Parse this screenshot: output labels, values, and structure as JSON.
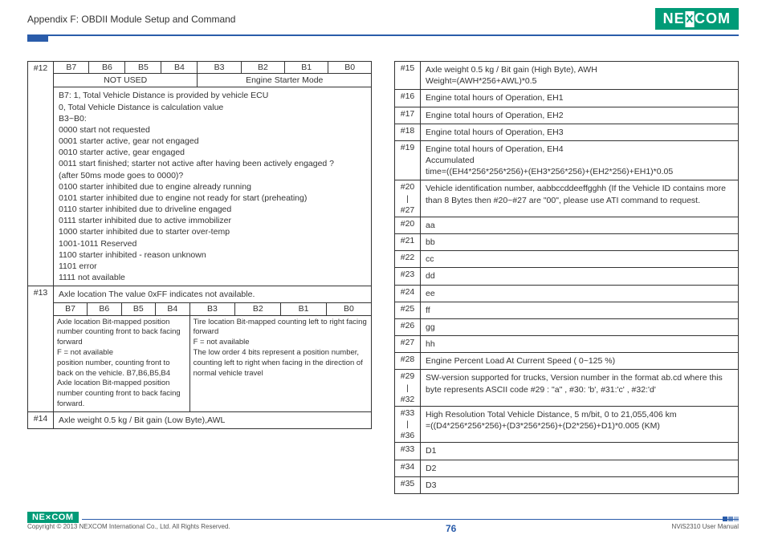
{
  "header": {
    "appendix": "Appendix F: OBDII Module Setup and Command",
    "brand": "NEXCOM"
  },
  "left": {
    "bits": [
      "B7",
      "B6",
      "B5",
      "B4",
      "B3",
      "B2",
      "B1",
      "B0"
    ],
    "span1": "NOT USED",
    "span2": "Engine Starter Mode",
    "r12_idx": "#12",
    "r12": [
      "B7: 1, Total Vehicle Distance is provided by vehicle ECU",
      "0, Total Vehicle Distance is calculation value",
      "B3~B0:",
      "0000 start not requested",
      "0001 starter active, gear not engaged",
      "0010 starter active, gear engaged",
      "0011 start finished; starter not active after having been actively engaged ?",
      "(after 50ms mode goes to 0000)?",
      "0100 starter inhibited due to engine already running",
      "0101 starter inhibited due to engine not ready for start (preheating)",
      "0110 starter inhibited due to driveline engaged",
      "0111 starter inhibited due to active immobilizer",
      "1000 starter inhibited due to starter over-temp",
      "1001-1011 Reserved",
      "1100 starter inhibited - reason unknown",
      "1101 error",
      "1111 not available"
    ],
    "r13_idx": "#13",
    "r13_title": "Axle location The value 0xFF indicates not available.",
    "r13_left": "Axle location Bit-mapped position number counting front to back facing forward\nF = not available\nposition number, counting front to back on the vehicle. B7,B6,B5,B4\nAxle location Bit-mapped position number counting front to back facing forward.",
    "r13_right": "Tire location Bit-mapped counting left to right facing forward\nF = not available\nThe low order 4 bits represent a position number, counting left to right when facing in the direction of normal vehicle travel",
    "r14_idx": "#14",
    "r14": "Axle weight 0.5 kg / Bit gain (Low Byte),AWL"
  },
  "right": {
    "rows": [
      {
        "idx": "#15",
        "txt": "Axle weight 0.5 kg / Bit gain (High Byte), AWH\nWeight=(AWH*256+AWL)*0.5"
      },
      {
        "idx": "#16",
        "txt": "Engine total hours of Operation, EH1"
      },
      {
        "idx": "#17",
        "txt": "Engine total hours of Operation, EH2"
      },
      {
        "idx": "#18",
        "txt": "Engine total hours of Operation, EH3"
      },
      {
        "idx": "#19",
        "txt": "Engine total hours of Operation, EH4\nAccumulated\ntime=((EH4*256*256*256)+(EH3*256*256)+(EH2*256)+EH1)*0.05"
      },
      {
        "idx": "#20\n|\n#27",
        "txt": "Vehicle identification number, aabbccddeeffgghh (If the Vehicle ID contains more than 8 Bytes then #20~#27 are \"00\", please use ATI command to request."
      },
      {
        "idx": "#20",
        "txt": "aa"
      },
      {
        "idx": "#21",
        "txt": "bb"
      },
      {
        "idx": "#22",
        "txt": "cc"
      },
      {
        "idx": "#23",
        "txt": "dd"
      },
      {
        "idx": "#24",
        "txt": "ee"
      },
      {
        "idx": "#25",
        "txt": "ff"
      },
      {
        "idx": "#26",
        "txt": "gg"
      },
      {
        "idx": "#27",
        "txt": "hh"
      },
      {
        "idx": "#28",
        "txt": "Engine Percent Load At Current Speed ( 0~125 %)"
      },
      {
        "idx": "#29\n|\n#32",
        "txt": "SW-version supported for trucks, Version number in the format ab.cd where this byte represents ASCII code #29 : \"a\" , #30: 'b', #31:'c' , #32:'d'"
      },
      {
        "idx": "#33\n|\n#36",
        "txt": "High Resolution Total Vehicle Distance, 5 m/bit, 0 to 21,055,406 km\n=((D4*256*256*256)+(D3*256*256)+(D2*256)+D1)*0.005 (KM)"
      },
      {
        "idx": "#33",
        "txt": "D1"
      },
      {
        "idx": "#34",
        "txt": "D2"
      },
      {
        "idx": "#35",
        "txt": "D3"
      }
    ]
  },
  "footer": {
    "copyright": "Copyright © 2013 NEXCOM International Co., Ltd. All Rights Reserved.",
    "page": "76",
    "manual": "NViS2310 User Manual"
  }
}
